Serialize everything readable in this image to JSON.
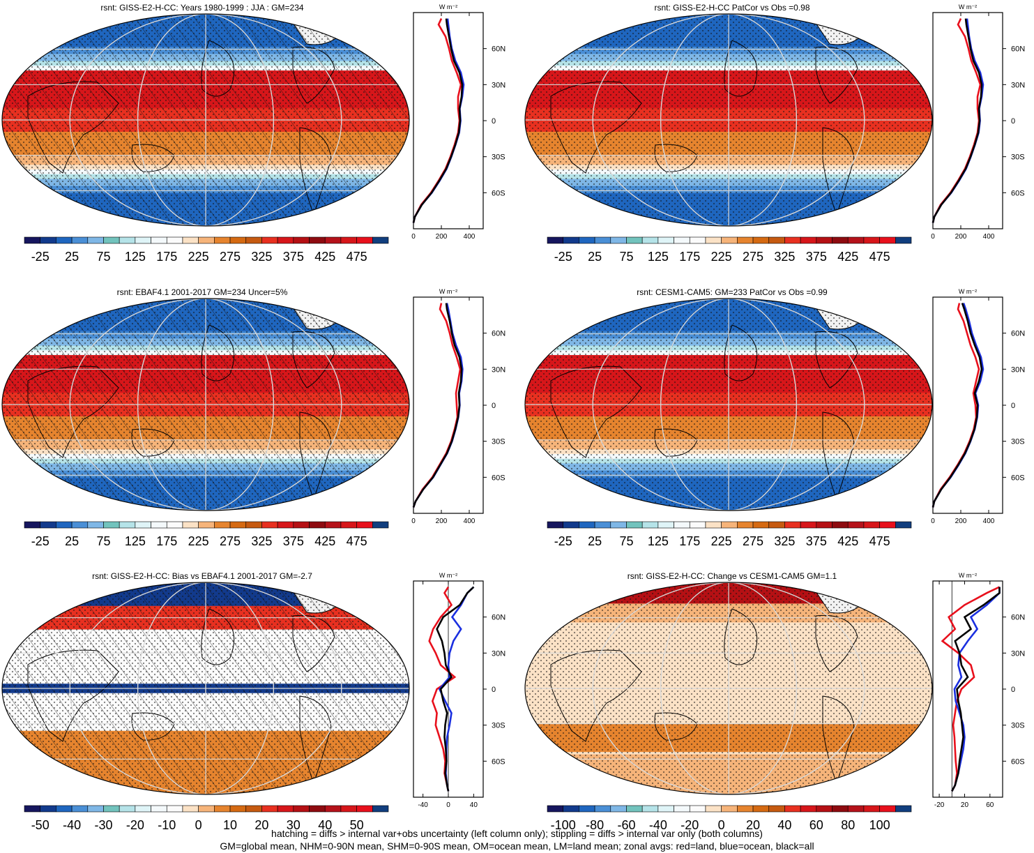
{
  "colors": {
    "red": "#e8101c",
    "blue": "#1a2fe0",
    "black": "#000000",
    "abs_levels": [
      "#16165e",
      "#123a8c",
      "#1f66bf",
      "#4a8fd6",
      "#7fb7e6",
      "#72c3bd",
      "#b5e3e8",
      "#dff4f7",
      "#f4f9fb",
      "#fbfbfb",
      "#fbe2c6",
      "#f6b47a",
      "#e6842e",
      "#d56a12",
      "#c65a10",
      "#e83020",
      "#d7161a",
      "#b51014",
      "#8e0b10",
      "#b5121a",
      "#d7161a",
      "#e8101c",
      "#113e7e"
    ],
    "diff_levels": [
      "#16165e",
      "#123a8c",
      "#1f66bf",
      "#4a8fd6",
      "#7fb7e6",
      "#72c3bd",
      "#b5e3e8",
      "#dff4f7",
      "#f4f9fb",
      "#fbfbfb",
      "#fbe2c6",
      "#f6b47a",
      "#e6842e",
      "#d56a12",
      "#c65a10",
      "#e83020",
      "#d7161a",
      "#b51014",
      "#8e0b10",
      "#b5121a",
      "#d7161a",
      "#e8101c",
      "#113e7e"
    ]
  },
  "units": "W m⁻²",
  "footer": {
    "line1": "hatching = diffs > internal var+obs uncertainty (left column only); stippling = diffs > internal var only (both columns)",
    "line2": "GM=global mean, NHM=0-90N mean, SHM=0-90S mean, OM=ocean mean, LM=land mean; zonal avgs: red=land, blue=ocean, black=all"
  },
  "chart_data": [
    {
      "type": "heatmap",
      "title": "rsnt: GISS-E2-H-CC: Years 1980-1999 : JJA : GM=234",
      "colorbar_labels": [
        "-25",
        "25",
        "75",
        "125",
        "175",
        "225",
        "275",
        "325",
        "375",
        "425",
        "475"
      ],
      "colorbar": "abs",
      "hatching": true,
      "zonal": {
        "y_ticks": [
          "60N",
          "30N",
          "0",
          "30S",
          "60S"
        ],
        "x_ticks": [
          "0",
          "200",
          "400"
        ],
        "xlim": [
          0,
          500
        ],
        "lat": [
          -85,
          -80,
          -70,
          -60,
          -50,
          -40,
          -30,
          -20,
          -10,
          0,
          10,
          20,
          30,
          40,
          50,
          60,
          70,
          80,
          85
        ],
        "all": [
          0,
          10,
          60,
          130,
          185,
          235,
          270,
          300,
          325,
          335,
          330,
          345,
          350,
          330,
          290,
          270,
          255,
          240,
          235
        ],
        "land": [
          0,
          10,
          55,
          125,
          180,
          230,
          265,
          295,
          320,
          330,
          320,
          320,
          340,
          310,
          275,
          255,
          230,
          180,
          200
        ],
        "ocean": [
          0,
          10,
          60,
          132,
          188,
          238,
          272,
          302,
          328,
          338,
          332,
          350,
          360,
          340,
          300,
          275,
          260,
          250,
          245
        ]
      }
    },
    {
      "type": "heatmap",
      "title": "rsnt: GISS-E2-H-CC PatCor vs Obs =0.98",
      "colorbar_labels": [
        "-25",
        "25",
        "75",
        "125",
        "175",
        "225",
        "275",
        "325",
        "375",
        "425",
        "475"
      ],
      "colorbar": "abs",
      "hatching": false,
      "zonal": {
        "y_ticks": [
          "60N",
          "30N",
          "0",
          "30S",
          "60S"
        ],
        "x_ticks": [
          "0",
          "200",
          "400"
        ],
        "xlim": [
          0,
          500
        ],
        "lat": [
          -85,
          -80,
          -70,
          -60,
          -50,
          -40,
          -30,
          -20,
          -10,
          0,
          10,
          20,
          30,
          40,
          50,
          60,
          70,
          80,
          85
        ],
        "all": [
          0,
          10,
          60,
          130,
          185,
          235,
          270,
          300,
          325,
          335,
          330,
          345,
          350,
          330,
          290,
          270,
          255,
          240,
          235
        ],
        "land": [
          0,
          10,
          55,
          125,
          180,
          230,
          265,
          295,
          320,
          330,
          320,
          320,
          340,
          310,
          275,
          255,
          230,
          180,
          200
        ],
        "ocean": [
          0,
          10,
          60,
          132,
          188,
          238,
          272,
          302,
          328,
          338,
          332,
          350,
          360,
          340,
          300,
          275,
          260,
          250,
          245
        ]
      }
    },
    {
      "type": "heatmap",
      "title": "rsnt: EBAF4.1 2001-2017 GM=234 Uncer=5%",
      "colorbar_labels": [
        "-25",
        "25",
        "75",
        "125",
        "175",
        "225",
        "275",
        "325",
        "375",
        "425",
        "475"
      ],
      "colorbar": "abs",
      "hatching": true,
      "zonal": {
        "y_ticks": [
          "60N",
          "30N",
          "0",
          "30S",
          "60S"
        ],
        "x_ticks": [
          "0",
          "200",
          "400"
        ],
        "xlim": [
          0,
          500
        ],
        "lat": [
          -85,
          -80,
          -70,
          -60,
          -50,
          -40,
          -30,
          -20,
          -10,
          0,
          10,
          20,
          30,
          40,
          50,
          60,
          70,
          80,
          85
        ],
        "all": [
          0,
          15,
          70,
          140,
          190,
          240,
          275,
          300,
          320,
          330,
          325,
          340,
          345,
          330,
          295,
          275,
          260,
          240,
          235
        ],
        "land": [
          0,
          15,
          65,
          135,
          185,
          235,
          270,
          295,
          315,
          310,
          305,
          320,
          335,
          310,
          280,
          260,
          235,
          190,
          200
        ],
        "ocean": [
          0,
          15,
          70,
          142,
          192,
          242,
          277,
          302,
          322,
          332,
          328,
          345,
          352,
          340,
          305,
          280,
          265,
          250,
          240
        ]
      }
    },
    {
      "type": "heatmap",
      "title": "rsnt: CESM1-CAM5: GM=233 PatCor vs Obs =0.99",
      "colorbar_labels": [
        "-25",
        "25",
        "75",
        "125",
        "175",
        "225",
        "275",
        "325",
        "375",
        "425",
        "475"
      ],
      "colorbar": "abs",
      "hatching": false,
      "zonal": {
        "y_ticks": [
          "60N",
          "30N",
          "0",
          "30S",
          "60S"
        ],
        "x_ticks": [
          "0",
          "200",
          "400"
        ],
        "xlim": [
          0,
          500
        ],
        "lat": [
          -85,
          -80,
          -70,
          -60,
          -50,
          -40,
          -30,
          -20,
          -10,
          0,
          10,
          20,
          30,
          40,
          50,
          60,
          70,
          80,
          85
        ],
        "all": [
          0,
          10,
          60,
          125,
          180,
          230,
          268,
          298,
          315,
          320,
          300,
          330,
          350,
          335,
          300,
          270,
          250,
          225,
          210
        ],
        "land": [
          0,
          10,
          55,
          120,
          175,
          225,
          263,
          293,
          310,
          305,
          290,
          310,
          330,
          305,
          270,
          245,
          220,
          180,
          190
        ],
        "ocean": [
          0,
          10,
          60,
          128,
          183,
          233,
          270,
          300,
          318,
          325,
          305,
          340,
          360,
          345,
          310,
          280,
          260,
          235,
          220
        ]
      }
    },
    {
      "type": "heatmap",
      "title": "rsnt: GISS-E2-H-CC: Bias vs EBAF4.1 2001-2017 GM=-2.7",
      "colorbar_labels": [
        "-50",
        "-40",
        "-30",
        "-20",
        "-10",
        "0",
        "10",
        "20",
        "30",
        "40",
        "50"
      ],
      "colorbar": "diff",
      "hatching": true,
      "zonal": {
        "y_ticks": [
          "60N",
          "30N",
          "0",
          "30S",
          "60S"
        ],
        "x_ticks": [
          "-40",
          "0",
          "40"
        ],
        "xlim": [
          -55,
          55
        ],
        "lat": [
          -85,
          -80,
          -70,
          -60,
          -50,
          -40,
          -30,
          -20,
          -10,
          0,
          10,
          20,
          30,
          40,
          50,
          60,
          70,
          80,
          85
        ],
        "all": [
          0,
          -2,
          -5,
          -3,
          -4,
          -6,
          -5,
          -2,
          -8,
          -12,
          5,
          -4,
          -6,
          -10,
          -18,
          -8,
          18,
          30,
          40
        ],
        "land": [
          0,
          -2,
          -6,
          -5,
          -8,
          -14,
          -20,
          -18,
          -25,
          -18,
          10,
          -12,
          -20,
          -30,
          -24,
          -12,
          5,
          -6,
          0
        ],
        "ocean": [
          0,
          -2,
          -4,
          -3,
          -3,
          -2,
          2,
          5,
          -5,
          -14,
          2,
          0,
          2,
          8,
          20,
          6,
          20,
          30,
          40
        ]
      }
    },
    {
      "type": "heatmap",
      "title": "rsnt: GISS-E2-H-CC: Change vs CESM1-CAM5 GM=1.1",
      "colorbar_labels": [
        "-100",
        "-80",
        "-60",
        "-40",
        "-20",
        "0",
        "20",
        "40",
        "60",
        "80",
        "100"
      ],
      "colorbar": "diff",
      "hatching": false,
      "zonal": {
        "y_ticks": [
          "60N",
          "30N",
          "0",
          "30S",
          "60S"
        ],
        "x_ticks": [
          "-20",
          "20",
          "60"
        ],
        "xlim": [
          -30,
          80
        ],
        "lat": [
          -85,
          -80,
          -70,
          -60,
          -50,
          -40,
          -30,
          -20,
          -10,
          0,
          10,
          20,
          30,
          40,
          50,
          60,
          70,
          80,
          85
        ],
        "all": [
          0,
          5,
          10,
          12,
          15,
          18,
          16,
          14,
          10,
          8,
          25,
          15,
          12,
          5,
          30,
          20,
          50,
          75,
          75
        ],
        "land": [
          0,
          5,
          8,
          6,
          5,
          4,
          2,
          5,
          8,
          15,
          35,
          30,
          10,
          -15,
          5,
          -5,
          20,
          55,
          75
        ],
        "ocean": [
          0,
          5,
          10,
          14,
          18,
          20,
          18,
          12,
          6,
          4,
          15,
          10,
          12,
          25,
          40,
          30,
          55,
          75,
          75
        ]
      }
    }
  ]
}
